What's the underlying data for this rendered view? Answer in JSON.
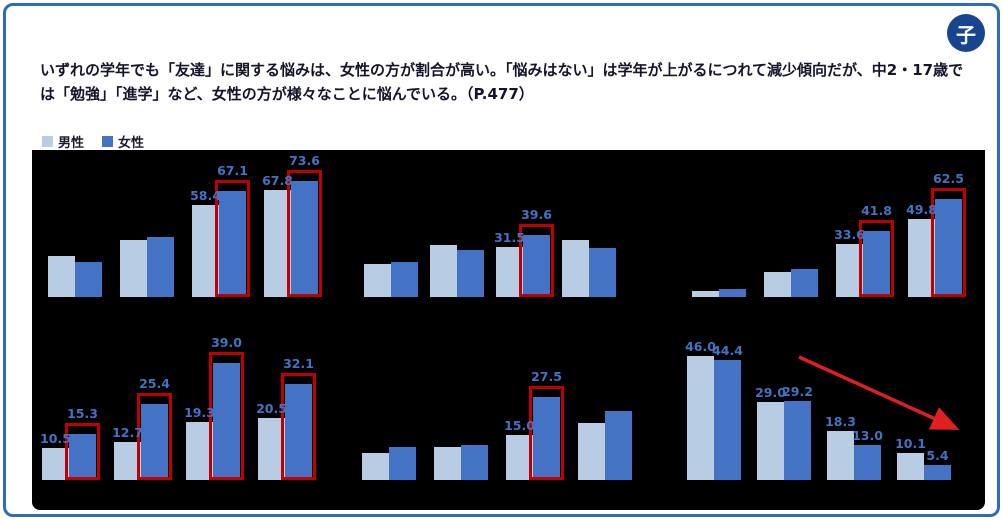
{
  "badge": {
    "label": "子"
  },
  "header": {
    "text": "いずれの学年でも「友達」に関する悩みは、女性の方が割合が高い。「悩みはない」は学年が上がるにつれて減少傾向だが、中2・17歳では「勉強」「進学」など、女性の方が様々なことに悩んでいる。（P.477）"
  },
  "legend": {
    "male": "男性",
    "female": "女性"
  },
  "colors": {
    "male_bar": "#b8cce4",
    "female_bar": "#4472c4",
    "value_label": "#4472c4",
    "highlight_box": "#c00000",
    "arrow": "#e02020",
    "panel_bg": "#000000",
    "card_border": "#2e6bb8",
    "badge_bg": "#17458f"
  },
  "chart_data": [
    {
      "type": "bar",
      "title": "",
      "ylim": [
        0,
        80
      ],
      "series": [
        {
          "name": "男性",
          "values": [
            26,
            36,
            58.4,
            67.8
          ]
        },
        {
          "name": "女性",
          "values": [
            22,
            38,
            67.1,
            73.6
          ]
        }
      ],
      "labels_male": [
        null,
        null,
        "58.4",
        "67.8"
      ],
      "labels_female": [
        null,
        null,
        "67.1",
        "73.6"
      ],
      "highlight_female": [
        false,
        false,
        true,
        true
      ],
      "arrow": false
    },
    {
      "type": "bar",
      "title": "",
      "ylim": [
        0,
        80
      ],
      "series": [
        {
          "name": "男性",
          "values": [
            21,
            33,
            31.5,
            36
          ]
        },
        {
          "name": "女性",
          "values": [
            22,
            30,
            39.6,
            31
          ]
        }
      ],
      "labels_male": [
        null,
        null,
        "31.5",
        null
      ],
      "labels_female": [
        null,
        null,
        "39.6",
        null
      ],
      "highlight_female": [
        false,
        false,
        true,
        false
      ],
      "arrow": false
    },
    {
      "type": "bar",
      "title": "",
      "ylim": [
        0,
        80
      ],
      "series": [
        {
          "name": "男性",
          "values": [
            4,
            16,
            33.6,
            49.8
          ]
        },
        {
          "name": "女性",
          "values": [
            5,
            18,
            41.8,
            62.5
          ]
        }
      ],
      "labels_male": [
        null,
        null,
        "33.6",
        "49.8"
      ],
      "labels_female": [
        null,
        null,
        "41.8",
        "62.5"
      ],
      "highlight_female": [
        false,
        false,
        true,
        true
      ],
      "arrow": false
    },
    {
      "type": "bar",
      "title": "",
      "ylim": [
        0,
        45
      ],
      "series": [
        {
          "name": "男性",
          "values": [
            10.5,
            12.7,
            19.3,
            20.5
          ]
        },
        {
          "name": "女性",
          "values": [
            15.3,
            25.4,
            39.0,
            32.1
          ]
        }
      ],
      "labels_male": [
        "10.5",
        "12.7",
        "19.3",
        "20.5"
      ],
      "labels_female": [
        "15.3",
        "25.4",
        "39.0",
        "32.1"
      ],
      "highlight_female": [
        true,
        true,
        true,
        true
      ],
      "arrow": false
    },
    {
      "type": "bar",
      "title": "",
      "ylim": [
        0,
        45
      ],
      "series": [
        {
          "name": "男性",
          "values": [
            9,
            11,
            15.0,
            19
          ]
        },
        {
          "name": "女性",
          "values": [
            11,
            11.5,
            27.5,
            23
          ]
        }
      ],
      "labels_male": [
        null,
        null,
        "15.0",
        null
      ],
      "labels_female": [
        null,
        null,
        "27.5",
        null
      ],
      "highlight_female": [
        false,
        false,
        true,
        false
      ],
      "arrow": false
    },
    {
      "type": "bar",
      "title": "",
      "ylim": [
        0,
        50
      ],
      "series": [
        {
          "name": "男性",
          "values": [
            46.0,
            29.0,
            18.3,
            10.1
          ]
        },
        {
          "name": "女性",
          "values": [
            44.4,
            29.2,
            13.0,
            5.4
          ]
        }
      ],
      "labels_male": [
        "46.0",
        "29.0",
        "18.3",
        "10.1"
      ],
      "labels_female": [
        "44.4",
        "29.2",
        "13.0",
        "5.4"
      ],
      "highlight_female": [
        false,
        false,
        false,
        false
      ],
      "arrow": true
    }
  ]
}
